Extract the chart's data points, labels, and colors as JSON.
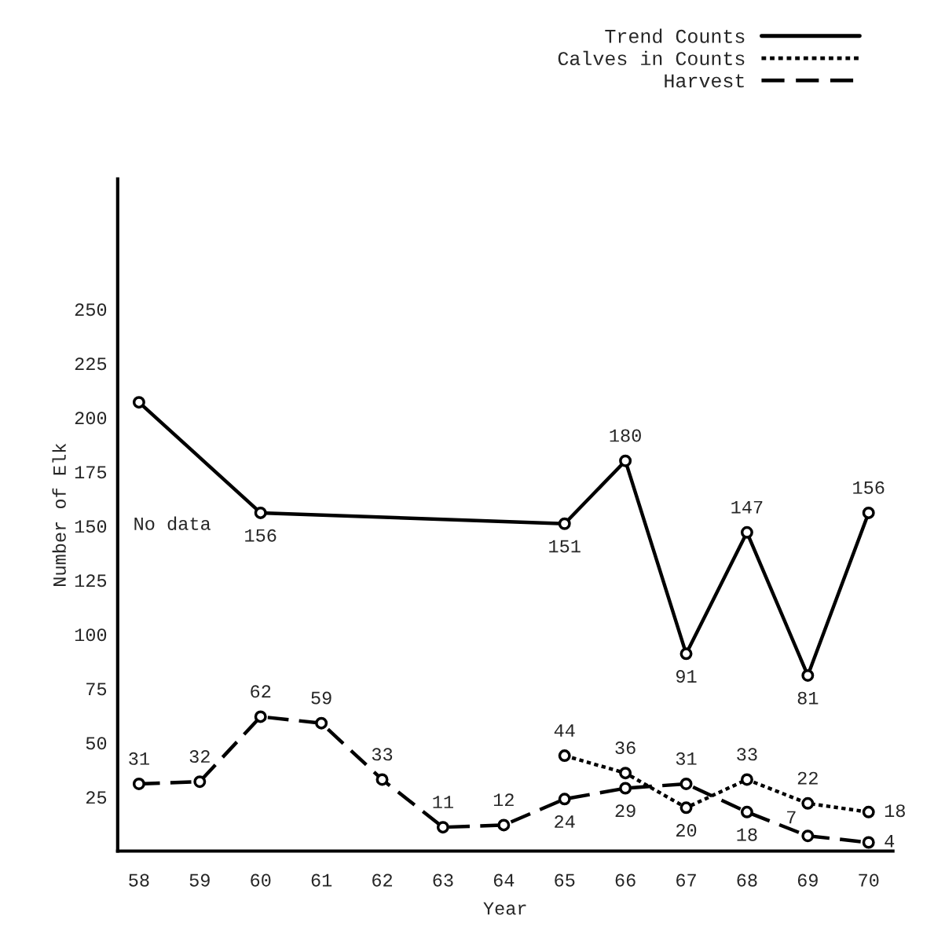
{
  "chart_data": {
    "type": "line",
    "xlabel": "Year",
    "ylabel": "Number of Elk",
    "categories": [
      "58",
      "59",
      "60",
      "61",
      "62",
      "63",
      "64",
      "65",
      "66",
      "67",
      "68",
      "69",
      "70"
    ],
    "ylim": [
      0,
      310
    ],
    "yticks": [
      25,
      50,
      75,
      100,
      125,
      150,
      175,
      200,
      225,
      250
    ],
    "marker": "circle",
    "legend": "top right",
    "grid": false,
    "series": [
      {
        "name": "Trend Counts",
        "color": "#000000",
        "line_style": "solid",
        "values": [
          207,
          null,
          156,
          null,
          null,
          null,
          null,
          151,
          180,
          91,
          147,
          81,
          156
        ],
        "value_labels": [
          null,
          null,
          "156",
          null,
          null,
          null,
          null,
          "151",
          "180",
          "91",
          "147",
          "81",
          "156"
        ]
      },
      {
        "name": "Calves in Counts",
        "color": "#000000",
        "line_style": "dotted",
        "values": [
          null,
          null,
          null,
          null,
          null,
          null,
          null,
          44,
          36,
          20,
          33,
          22,
          18
        ],
        "value_labels": [
          null,
          null,
          null,
          null,
          null,
          null,
          null,
          "44",
          "36",
          "20",
          "33",
          "22",
          "18"
        ]
      },
      {
        "name": "Harvest",
        "color": "#000000",
        "line_style": "dashed",
        "values": [
          31,
          32,
          62,
          59,
          33,
          11,
          12,
          24,
          29,
          31,
          18,
          7,
          4
        ],
        "value_labels": [
          "31",
          "32",
          "62",
          "59",
          "33",
          "11",
          "12",
          "24",
          "29",
          "31",
          "18",
          "7",
          "4"
        ]
      }
    ],
    "annotations": [
      "No data"
    ]
  }
}
